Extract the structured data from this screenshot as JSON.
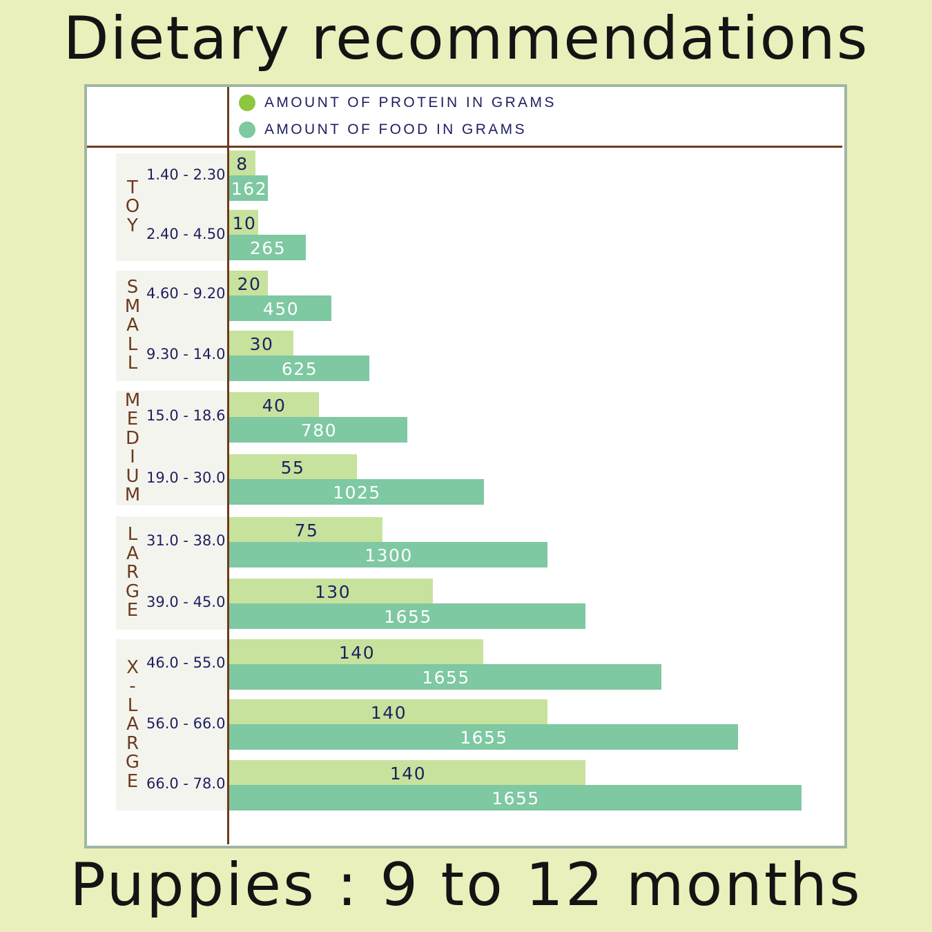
{
  "title": "Dietary recommendations",
  "subtitle": "Puppies : 9 to 12 months",
  "legend": [
    {
      "label": "AMOUNT OF PROTEIN IN GRAMS",
      "color": "#8dc63f"
    },
    {
      "label": "AMOUNT OF FOOD IN GRAMS",
      "color": "#7ec8a2"
    }
  ],
  "groups": [
    {
      "name": "TOY",
      "letters": [
        "T",
        "O",
        "Y"
      ]
    },
    {
      "name": "SMALL",
      "letters": [
        "S",
        "M",
        "A",
        "L",
        "L"
      ]
    },
    {
      "name": "MEDIUM",
      "letters": [
        "M",
        "E",
        "D",
        "I",
        "U",
        "M"
      ]
    },
    {
      "name": "LARGE",
      "letters": [
        "L",
        "A",
        "R",
        "G",
        "E"
      ]
    },
    {
      "name": "X-LARGE",
      "letters": [
        "X",
        "-",
        "L",
        "A",
        "R",
        "G",
        "E"
      ]
    }
  ],
  "chart_data": {
    "type": "bar",
    "orientation": "horizontal",
    "legend_placement": "top",
    "grid": false,
    "categories": [
      "1.40 - 2.30",
      "2.40 - 4.50",
      "4.60 - 9.20",
      "9.30 - 14.0",
      "15.0 - 18.6",
      "19.0 - 30.0",
      "31.0 - 38.0",
      "39.0 - 45.0",
      "46.0 - 55.0",
      "56.0 - 66.0",
      "66.0 - 78.0"
    ],
    "category_groups": [
      "TOY",
      "TOY",
      "SMALL",
      "SMALL",
      "MEDIUM",
      "MEDIUM",
      "LARGE",
      "LARGE",
      "X-LARGE",
      "X-LARGE",
      "X-LARGE"
    ],
    "series": [
      {
        "name": "AMOUNT OF PROTEIN IN GRAMS",
        "color": "#c7e29d",
        "values": [
          8,
          10,
          20,
          30,
          40,
          55,
          75,
          130,
          140,
          140,
          140
        ]
      },
      {
        "name": "AMOUNT OF FOOD IN GRAMS",
        "color": "#7ec8a2",
        "values": [
          162,
          265,
          450,
          625,
          780,
          1025,
          1300,
          1655,
          1655,
          1655,
          1655
        ]
      }
    ]
  }
}
